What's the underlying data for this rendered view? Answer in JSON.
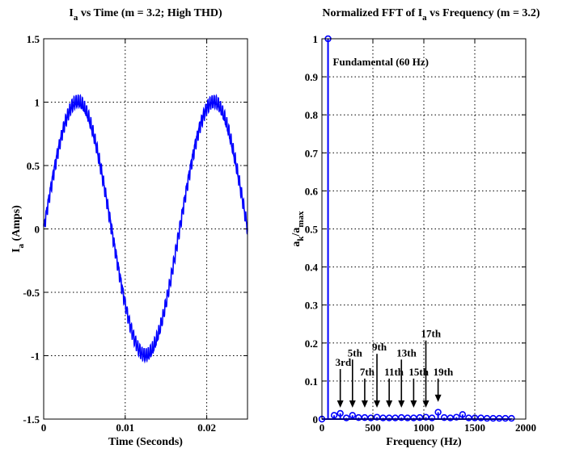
{
  "chart_data": [
    {
      "type": "line",
      "title": {
        "main": "I",
        "sub": "a",
        "rest": " vs Time (m = 3.2; High THD)"
      },
      "xlabel": "Time (Seconds)",
      "ylabel": {
        "main": "I",
        "sub": "a",
        "rest": " (Amps)"
      },
      "xlim": [
        0,
        0.025
      ],
      "ylim": [
        -1.5,
        1.5
      ],
      "xticks": [
        0,
        0.01,
        0.02
      ],
      "xtick_labels": [
        "0",
        "0.01",
        "0.02"
      ],
      "yticks": [
        -1.5,
        -1,
        -0.5,
        0,
        0.5,
        1,
        1.5
      ],
      "ytick_labels": [
        "-1.5",
        "-1",
        "-0.5",
        "0",
        "0.5",
        "1",
        "1.5"
      ],
      "grid": true,
      "series": [
        {
          "color": "#0000ff",
          "waveform": {
            "amplitude": 1.0,
            "fundamental_hz": 60,
            "ripple_amplitude": 0.04,
            "ripple_hz": 3840
          },
          "t_range": [
            0,
            0.025
          ]
        }
      ]
    },
    {
      "type": "stem",
      "title": {
        "main": "Normalized FFT of I",
        "sub": "a",
        "rest": " vs Frequency (m = 3.2)"
      },
      "xlabel": "Frequency (Hz)",
      "ylabel": {
        "a": "a",
        "sub1": "k",
        "slash": "/a",
        "sub2": "max"
      },
      "xlim": [
        0,
        2000
      ],
      "ylim": [
        0,
        1
      ],
      "xticks": [
        0,
        500,
        1000,
        1500,
        2000
      ],
      "xtick_labels": [
        "0",
        "500",
        "1000",
        "1500",
        "2000"
      ],
      "yticks": [
        0,
        0.1,
        0.2,
        0.3,
        0.4,
        0.5,
        0.6,
        0.7,
        0.8,
        0.9,
        1
      ],
      "ytick_labels": [
        "0",
        "0.1",
        "0.2",
        "0.3",
        "0.4",
        "0.5",
        "0.6",
        "0.7",
        "0.8",
        "0.9",
        "1"
      ],
      "grid": true,
      "series": [
        {
          "color": "#0000ff",
          "points": [
            [
              0,
              0
            ],
            [
              60,
              1
            ],
            [
              120,
              0.01
            ],
            [
              180,
              0.015
            ],
            [
              240,
              0.003
            ],
            [
              300,
              0.01
            ],
            [
              360,
              0.004
            ],
            [
              420,
              0.004
            ],
            [
              480,
              0.003
            ],
            [
              540,
              0.005
            ],
            [
              600,
              0.003
            ],
            [
              660,
              0.003
            ],
            [
              720,
              0.003
            ],
            [
              780,
              0.004
            ],
            [
              840,
              0.003
            ],
            [
              900,
              0.003
            ],
            [
              960,
              0.004
            ],
            [
              1020,
              0.005
            ],
            [
              1080,
              0.003
            ],
            [
              1140,
              0.018
            ],
            [
              1200,
              0.004
            ],
            [
              1260,
              0.003
            ],
            [
              1320,
              0.005
            ],
            [
              1380,
              0.012
            ],
            [
              1440,
              0.003
            ],
            [
              1500,
              0.003
            ],
            [
              1560,
              0.003
            ],
            [
              1620,
              0.002
            ],
            [
              1680,
              0.002
            ],
            [
              1740,
              0.002
            ],
            [
              1800,
              0.002
            ],
            [
              1860,
              0.002
            ]
          ]
        }
      ],
      "annotations": [
        {
          "text": "Fundamental (60 Hz)",
          "x": 60,
          "y": 0.93
        },
        {
          "text": "3rd",
          "x": 180,
          "y": 0.14,
          "arrow_to": [
            180,
            0.03
          ]
        },
        {
          "text": "5th",
          "x": 300,
          "y": 0.165,
          "arrow_to": [
            300,
            0.03
          ]
        },
        {
          "text": "7th",
          "x": 420,
          "y": 0.115,
          "arrow_to": [
            420,
            0.03
          ]
        },
        {
          "text": "9th",
          "x": 540,
          "y": 0.18,
          "arrow_to": [
            540,
            0.03
          ]
        },
        {
          "text": "11th",
          "x": 660,
          "y": 0.115,
          "arrow_to": [
            660,
            0.03
          ]
        },
        {
          "text": "13th",
          "x": 780,
          "y": 0.165,
          "arrow_to": [
            780,
            0.03
          ]
        },
        {
          "text": "15th",
          "x": 900,
          "y": 0.115,
          "arrow_to": [
            900,
            0.03
          ]
        },
        {
          "text": "17th",
          "x": 1020,
          "y": 0.215,
          "arrow_to": [
            1020,
            0.03
          ]
        },
        {
          "text": "19th",
          "x": 1140,
          "y": 0.115,
          "arrow_to": [
            1140,
            0.045
          ]
        }
      ]
    }
  ]
}
